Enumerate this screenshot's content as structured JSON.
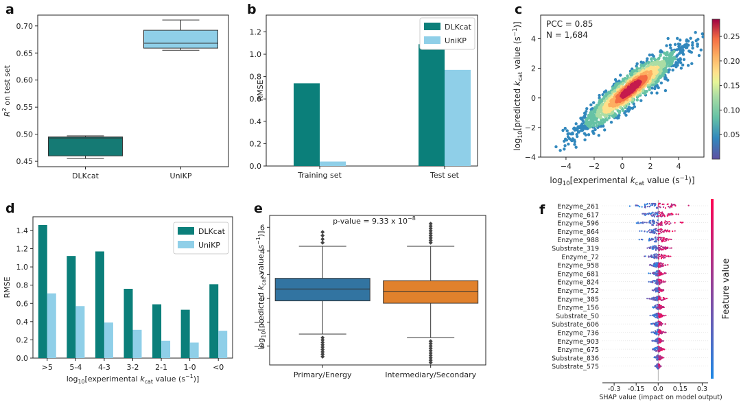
{
  "panel_labels": [
    "a",
    "b",
    "c",
    "d",
    "e",
    "f"
  ],
  "colors": {
    "dlkcat": "#0b7f7a",
    "unikp": "#8fcfe8",
    "box_dlkcat": "#157a74",
    "box_unikp": "#8fcfe8",
    "box_e1": "#3274a1",
    "box_e2": "#e1812c",
    "shap_low": "#1e88e5",
    "shap_high": "#ff0052"
  },
  "chart_data": [
    {
      "panel": "a",
      "type": "box",
      "ylabel_base": "R",
      "ylabel_sup": "2",
      "ylabel_rest": " on test set",
      "ylim": [
        0.44,
        0.72
      ],
      "yticks": [
        "0.45",
        "0.50",
        "0.55",
        "0.60",
        "0.65",
        "0.70"
      ],
      "ytick_values": [
        0.45,
        0.5,
        0.55,
        0.6,
        0.65,
        0.7
      ],
      "categories": [
        "DLKcat",
        "UniKP"
      ],
      "boxes": [
        {
          "name": "DLKcat",
          "whislo": 0.455,
          "q1": 0.46,
          "median": 0.493,
          "q3": 0.495,
          "whishi": 0.497
        },
        {
          "name": "UniKP",
          "whislo": 0.655,
          "q1": 0.659,
          "median": 0.668,
          "q3": 0.692,
          "whishi": 0.711
        }
      ]
    },
    {
      "panel": "b",
      "type": "bar",
      "ylabel": "RMSE",
      "ylim": [
        0,
        1.35
      ],
      "yticks": [
        "0.0",
        "0.2",
        "0.4",
        "0.6",
        "0.8",
        "1.0",
        "1.2"
      ],
      "ytick_values": [
        0,
        0.2,
        0.4,
        0.6,
        0.8,
        1.0,
        1.2
      ],
      "categories": [
        "Training set",
        "Test set"
      ],
      "series": [
        {
          "name": "DLKcat",
          "values": [
            0.74,
            1.09
          ]
        },
        {
          "name": "UniKP",
          "values": [
            0.04,
            0.86
          ]
        }
      ],
      "legend": "top-right"
    },
    {
      "panel": "c",
      "type": "scatter",
      "annotations": [
        "PCC = 0.85",
        "N = 1,684"
      ],
      "xlim": [
        -5.8,
        5.8
      ],
      "ylim": [
        -4.0,
        5.6
      ],
      "xticks": [
        "−4",
        "−2",
        "0",
        "2",
        "4"
      ],
      "xtick_values": [
        -4,
        -2,
        0,
        2,
        4
      ],
      "yticks": [
        "−4",
        "−2",
        "0",
        "2",
        "4"
      ],
      "ytick_values": [
        -4,
        -2,
        0,
        2,
        4
      ],
      "xlabel": {
        "pre": "log",
        "sub": "10",
        "mid": "[experimental ",
        "it": "k",
        "itsub": "cat",
        "post": " value (s",
        "sup": "−1",
        "end": ")]"
      },
      "ylabel": {
        "pre": "log",
        "sub": "10",
        "mid": "[predicted ",
        "it": "k",
        "itsub": "cat",
        "post": " value (s",
        "sup": "−1",
        "end": ")]"
      },
      "colorbar": {
        "ticks": [
          "0.25",
          "0.20",
          "0.15",
          "0.10",
          "0.05"
        ],
        "tick_values": [
          0.25,
          0.2,
          0.15,
          0.1,
          0.05
        ],
        "range": [
          0.0,
          0.285
        ]
      },
      "n_points": 1684,
      "pcc": 0.85
    },
    {
      "panel": "d",
      "type": "bar",
      "ylabel": "RMSE",
      "ylim": [
        0,
        1.55
      ],
      "yticks": [
        "0.0",
        "0.2",
        "0.4",
        "0.6",
        "0.8",
        "1.0",
        "1.2",
        "1.4"
      ],
      "ytick_values": [
        0,
        0.2,
        0.4,
        0.6,
        0.8,
        1.0,
        1.2,
        1.4
      ],
      "categories": [
        ">5",
        "5-4",
        "4-3",
        "3-2",
        "2-1",
        "1-0",
        "<0"
      ],
      "series": [
        {
          "name": "DLKcat",
          "values": [
            1.46,
            1.12,
            1.17,
            0.76,
            0.59,
            0.53,
            0.81
          ]
        },
        {
          "name": "UniKP",
          "values": [
            0.71,
            0.57,
            0.39,
            0.31,
            0.19,
            0.17,
            0.3
          ]
        }
      ],
      "xlabel": {
        "pre": "log",
        "sub": "10",
        "mid": "[experimental ",
        "it": "k",
        "itsub": "cat",
        "post": " value (s",
        "sup": "−1",
        "end": ")]"
      },
      "legend": "top-right"
    },
    {
      "panel": "e",
      "type": "box",
      "annotation": {
        "pre": "p-value = 9.33 x 10",
        "sup": "−8"
      },
      "ylim": [
        -5.6,
        7.0
      ],
      "yticks": [
        "6",
        "4",
        "2",
        "0",
        "−2",
        "−4"
      ],
      "ytick_values": [
        6,
        4,
        2,
        0,
        -2,
        -4
      ],
      "categories": [
        "Primary/Energy",
        "Intermediary/Secondary"
      ],
      "ylabel": {
        "pre": "log",
        "sub": "10",
        "mid": "[predicted ",
        "it": "k",
        "itsub": "cat",
        "post": " value (s",
        "sup": "−1",
        "end": ")]"
      },
      "boxes": [
        {
          "name": "Primary/Energy",
          "whislo": -3.0,
          "q1": -0.2,
          "median": 0.8,
          "q3": 1.7,
          "whishi": 4.4,
          "fliers": [
            -3.3,
            -3.5,
            -3.7,
            -3.9,
            -4.1,
            -4.3,
            -4.5,
            -4.7,
            -4.9,
            4.7,
            5.0,
            5.3,
            5.6
          ]
        },
        {
          "name": "Intermediary/Secondary",
          "whislo": -3.3,
          "q1": -0.4,
          "median": 0.6,
          "q3": 1.5,
          "whishi": 4.4,
          "fliers": [
            -3.6,
            -3.8,
            -4.0,
            -4.2,
            -4.4,
            -4.6,
            -4.8,
            -5.0,
            -5.2,
            -5.4,
            4.7,
            4.9,
            5.1,
            5.3,
            5.5,
            5.7,
            5.9,
            6.1,
            6.3
          ]
        }
      ]
    },
    {
      "panel": "f",
      "type": "shap_beeswarm",
      "features": [
        "Enzyme_261",
        "Enzyme_617",
        "Enzyme_596",
        "Enzyme_864",
        "Enzyme_988",
        "Substrate_319",
        "Enzyme_72",
        "Enzyme_958",
        "Enzyme_681",
        "Enzyme_824",
        "Enzyme_752",
        "Enzyme_385",
        "Enzyme_156",
        "Substrate_50",
        "Substrate_606",
        "Enzyme_736",
        "Enzyme_903",
        "Enzyme_675",
        "Substrate_836",
        "Substrate_575"
      ],
      "spread": [
        0.25,
        0.16,
        0.2,
        0.12,
        0.12,
        0.1,
        0.1,
        0.07,
        0.06,
        0.06,
        0.05,
        0.07,
        0.05,
        0.05,
        0.05,
        0.05,
        0.04,
        0.05,
        0.04,
        0.02
      ],
      "xlim": [
        -0.38,
        0.34
      ],
      "xticks": [
        "-0.3",
        "-0.15",
        "0.0",
        "0.15",
        "0.3"
      ],
      "xtick_values": [
        -0.3,
        -0.15,
        0.0,
        0.15,
        0.3
      ],
      "xlabel": "SHAP value (impact on model output)",
      "colorbar_label": "Feature value"
    }
  ]
}
